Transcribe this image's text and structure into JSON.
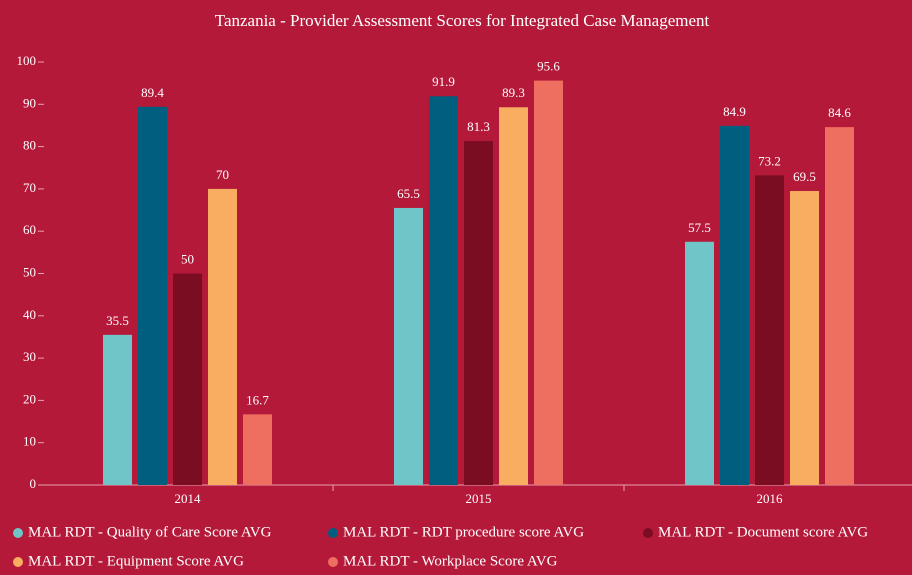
{
  "chart_data": {
    "type": "bar",
    "title": "Tanzania - Provider Assessment Scores for Integrated Case Management",
    "categories": [
      "2014",
      "2015",
      "2016"
    ],
    "series": [
      {
        "name": "MAL RDT - Quality of Care Score AVG",
        "color": "#6fc5c8",
        "values": [
          35.5,
          65.5,
          57.5
        ]
      },
      {
        "name": "MAL RDT - RDT procedure score AVG",
        "color": "#005e7e",
        "values": [
          89.4,
          91.9,
          84.9
        ]
      },
      {
        "name": "MAL RDT - Document score AVG",
        "color": "#7a0d21",
        "values": [
          50,
          81.3,
          73.2
        ]
      },
      {
        "name": "MAL RDT - Equipment Score AVG",
        "color": "#f8ad61",
        "values": [
          70,
          89.3,
          69.5
        ]
      },
      {
        "name": "MAL RDT - Workplace Score AVG",
        "color": "#ee6e60",
        "values": [
          16.7,
          95.6,
          84.6
        ]
      }
    ],
    "ylim": [
      0,
      100
    ],
    "yticks": [
      0,
      10,
      20,
      30,
      40,
      50,
      60,
      70,
      80,
      90,
      100
    ],
    "grid": false,
    "legend": "bottom"
  }
}
